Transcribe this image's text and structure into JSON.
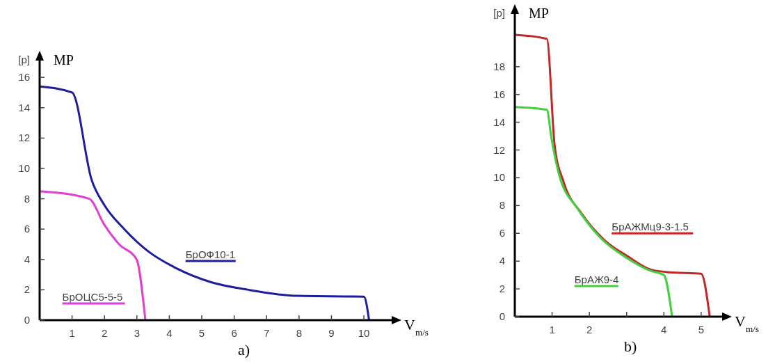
{
  "chart_data": [
    {
      "type": "line",
      "xlabel": "V$_{m/s}$",
      "ylabel": "[p]",
      "annotations": [
        "MP",
        "a)"
      ],
      "xlim": [
        0,
        10.9
      ],
      "ylim": [
        0,
        17.2
      ],
      "xticks": [
        1,
        2,
        3,
        4,
        5,
        6,
        7,
        8,
        9,
        10
      ],
      "yticks": [
        0,
        2,
        4,
        6,
        8,
        10,
        12,
        14,
        16
      ],
      "legend": false,
      "grid": false,
      "marker": "none",
      "series": [
        {
          "name": "БрОФ10-1",
          "color": "#1c1c9e",
          "x": [
            0,
            1,
            1.61,
            1.99,
            2.61,
            3.37,
            4.14,
            5.29,
            6.44,
            7.97,
            10,
            10.16
          ],
          "values": [
            15.4,
            15,
            9.2,
            7.6,
            6,
            4.5,
            3.5,
            2.5,
            2,
            1.6,
            1.55,
            0
          ]
        },
        {
          "name": "БрОЦС5-5-5",
          "color": "#e040d0",
          "x": [
            0,
            1.53,
            1.99,
            2.45,
            2.99,
            3.26
          ],
          "values": [
            8.5,
            8,
            6.3,
            5,
            4,
            0
          ]
        }
      ]
    },
    {
      "type": "line",
      "xlabel": "V$_{m/s}$",
      "ylabel": "[p]",
      "annotations": [
        "MP",
        "b)"
      ],
      "xlim": [
        0,
        5.6
      ],
      "ylim": [
        0,
        21.9
      ],
      "xticks": [
        1,
        2,
        {
          "value": 3,
          "label": null
        },
        4,
        5
      ],
      "yticks": [
        0,
        2,
        4,
        6,
        8,
        10,
        12,
        14,
        16,
        18
      ],
      "legend": false,
      "grid": false,
      "marker": "none",
      "series": [
        {
          "name": "БрАЖМц9-3-1.5",
          "color": "#c0282a",
          "x": [
            0,
            0.86,
            1.07,
            1.31,
            1.8,
            2.41,
            3.03,
            3.64,
            4.13,
            5,
            5.23
          ],
          "values": [
            20.3,
            20,
            12.3,
            9.7,
            7.4,
            5.5,
            4.35,
            3.4,
            3.2,
            3.1,
            0
          ]
        },
        {
          "name": "БрАЖ9-4",
          "color": "#40d040",
          "x": [
            0,
            0.86,
            0.98,
            1.19,
            1.68,
            2.29,
            3.02,
            3.64,
            4,
            4.22
          ],
          "values": [
            15.1,
            14.9,
            12.9,
            10.2,
            7.8,
            5.7,
            4.2,
            3.3,
            3,
            0
          ]
        }
      ]
    }
  ]
}
